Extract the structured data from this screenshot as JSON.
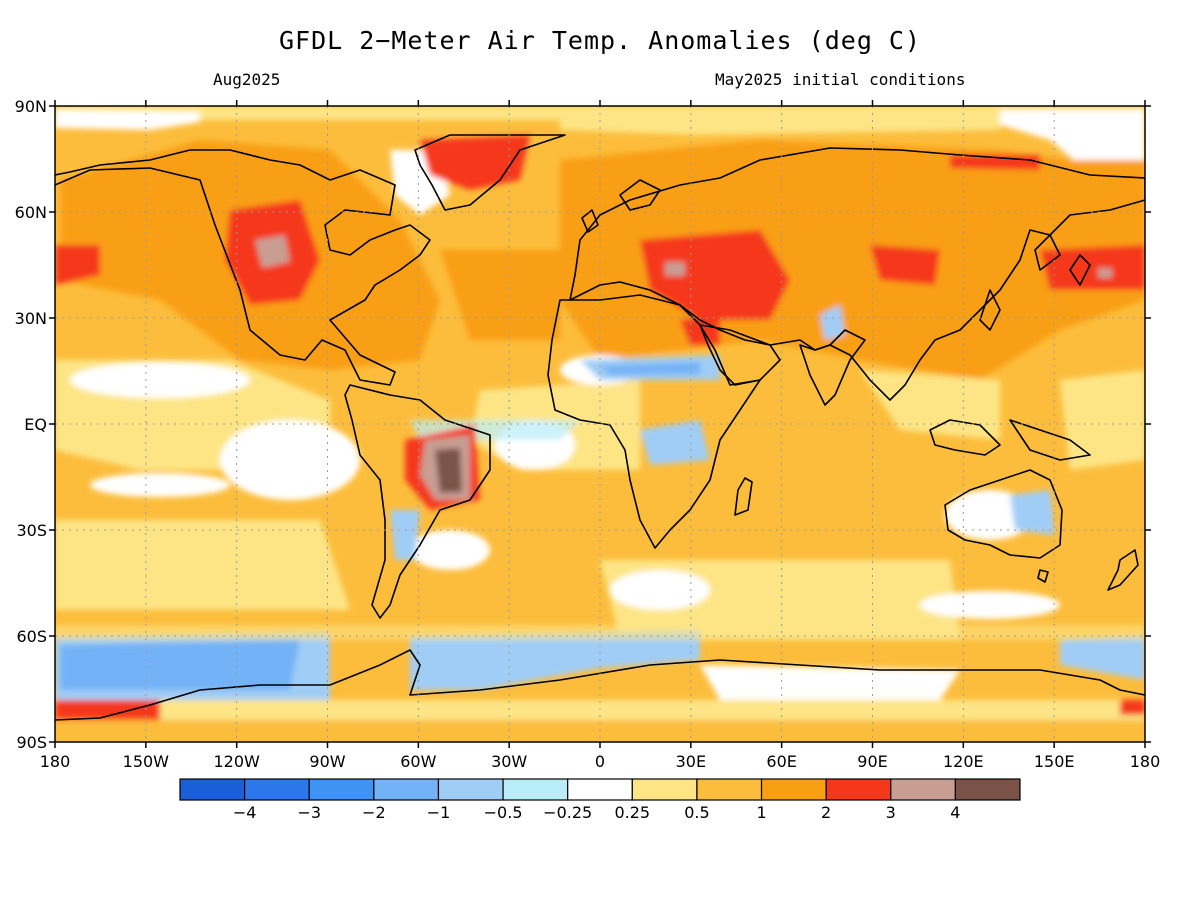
{
  "header": {
    "title": "GFDL 2−Meter Air Temp. Anomalies (deg C)",
    "valid_month": "Aug2025",
    "initial_conditions": "May2025 initial conditions"
  },
  "map": {
    "lat_labels": [
      "90N",
      "60N",
      "30N",
      "EQ",
      "30S",
      "60S",
      "90S"
    ],
    "lon_labels": [
      "180",
      "150W",
      "120W",
      "90W",
      "60W",
      "30W",
      "0",
      "30E",
      "60E",
      "90E",
      "120E",
      "150E",
      "180"
    ],
    "lat_values": [
      90,
      60,
      30,
      0,
      -30,
      -60,
      -90
    ],
    "lon_values": [
      -180,
      -150,
      -120,
      -90,
      -60,
      -30,
      0,
      30,
      60,
      90,
      120,
      150,
      180
    ]
  },
  "colorbar": {
    "colors": [
      "#1a5fd6",
      "#2b78ea",
      "#3f93f2",
      "#73b2f6",
      "#a0cdf6",
      "#b8ecf6",
      "#ffffff",
      "#fde586",
      "#fcbd3c",
      "#f99f12",
      "#f5381a",
      "#c89e93",
      "#7a5248"
    ],
    "labels": [
      "−4",
      "−3",
      "−2",
      "−1",
      "−0.5",
      "−0.25",
      "0.25",
      "0.5",
      "1",
      "2",
      "3",
      "4"
    ]
  }
}
